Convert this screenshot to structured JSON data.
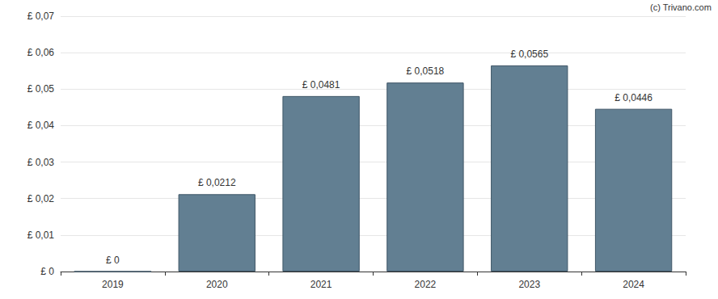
{
  "chart_data": {
    "type": "bar",
    "annotations": [
      "(c) Trivano.com"
    ],
    "categories": [
      "2019",
      "2020",
      "2021",
      "2022",
      "2023",
      "2024"
    ],
    "values": [
      0,
      0.0212,
      0.0481,
      0.0518,
      0.0565,
      0.0446
    ],
    "value_labels": [
      "£ 0",
      "£ 0,0212",
      "£ 0,0481",
      "£ 0,0518",
      "£ 0,0565",
      "£ 0,0446"
    ],
    "data_labels": true,
    "color": "#627f92",
    "ylim": [
      0,
      0.07
    ],
    "yticks": [
      {
        "value": 0,
        "label": "£ 0"
      },
      {
        "value": 0.01,
        "label": "£ 0,01"
      },
      {
        "value": 0.02,
        "label": "£ 0,02"
      },
      {
        "value": 0.03,
        "label": "£ 0,03"
      },
      {
        "value": 0.04,
        "label": "£ 0,04"
      },
      {
        "value": 0.05,
        "label": "£ 0,05"
      },
      {
        "value": 0.06,
        "label": "£ 0,06"
      },
      {
        "value": 0.07,
        "label": "£ 0,07"
      }
    ],
    "grid": true
  }
}
